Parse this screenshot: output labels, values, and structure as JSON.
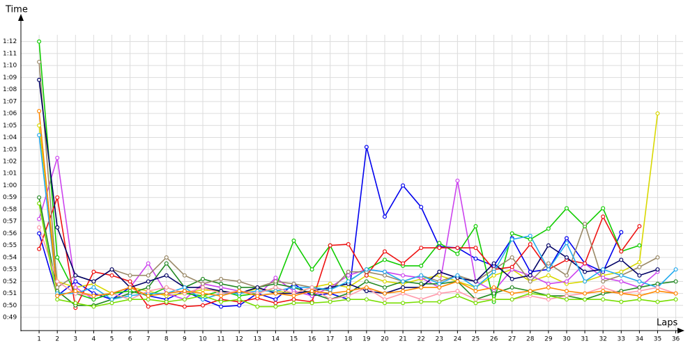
{
  "chart_data": {
    "type": "line",
    "x_label": "Laps",
    "y_label": "Time",
    "x": [
      1,
      2,
      3,
      4,
      5,
      6,
      7,
      8,
      9,
      10,
      11,
      12,
      13,
      14,
      15,
      16,
      17,
      18,
      19,
      20,
      21,
      22,
      23,
      24,
      25,
      26,
      27,
      28,
      29,
      30,
      31,
      32,
      33,
      34,
      35,
      36
    ],
    "xlim": [
      0,
      36.4
    ],
    "xticks": [
      1,
      2,
      3,
      4,
      5,
      6,
      7,
      8,
      9,
      10,
      11,
      12,
      13,
      14,
      15,
      16,
      17,
      18,
      19,
      20,
      21,
      22,
      23,
      24,
      25,
      26,
      27,
      28,
      29,
      30,
      31,
      32,
      33,
      34,
      35,
      36
    ],
    "ylim": [
      47.9,
      74.3
    ],
    "yticks": [
      {
        "value": 49,
        "label": "0:49"
      },
      {
        "value": 50,
        "label": "0:50"
      },
      {
        "value": 51,
        "label": "0:51"
      },
      {
        "value": 52,
        "label": "0:52"
      },
      {
        "value": 53,
        "label": "0:53"
      },
      {
        "value": 54,
        "label": "0:54"
      },
      {
        "value": 55,
        "label": "0:55"
      },
      {
        "value": 56,
        "label": "0:56"
      },
      {
        "value": 57,
        "label": "0:57"
      },
      {
        "value": 58,
        "label": "0:58"
      },
      {
        "value": 59,
        "label": "0:59"
      },
      {
        "value": 60,
        "label": "1:00"
      },
      {
        "value": 61,
        "label": "1:01"
      },
      {
        "value": 62,
        "label": "1:02"
      },
      {
        "value": 63,
        "label": "1:03"
      },
      {
        "value": 64,
        "label": "1:04"
      },
      {
        "value": 65,
        "label": "1:05"
      },
      {
        "value": 66,
        "label": "1:06"
      },
      {
        "value": 67,
        "label": "1:07"
      },
      {
        "value": 68,
        "label": "1:08"
      },
      {
        "value": 69,
        "label": "1:09"
      },
      {
        "value": 70,
        "label": "1:10"
      },
      {
        "value": 71,
        "label": "1:11"
      },
      {
        "value": 72,
        "label": "1:12"
      }
    ],
    "grid": true,
    "series": [
      {
        "color": "#0000ee",
        "values": [
          56.0,
          50.8,
          52.0,
          51.0,
          50.5,
          51.5,
          50.8,
          50.5,
          51.2,
          50.5,
          49.9,
          50.0,
          51.0,
          50.5,
          51.8,
          50.8,
          51.0,
          50.5,
          63.2,
          57.4,
          60.0,
          58.2,
          54.9,
          54.8,
          53.9,
          53.3,
          55.6,
          52.8,
          53.0,
          55.6,
          53.5,
          52.8,
          56.1,
          null,
          null,
          null
        ]
      },
      {
        "color": "#d8d800",
        "values": [
          65.0,
          52.0,
          51.5,
          51.8,
          51.0,
          51.5,
          51.2,
          50.8,
          51.0,
          51.3,
          51.2,
          51.0,
          51.4,
          51.2,
          51.0,
          51.5,
          51.8,
          51.5,
          52.5,
          52.0,
          51.8,
          52.2,
          52.5,
          52.0,
          51.5,
          52.5,
          53.0,
          52.0,
          52.5,
          51.8,
          52.0,
          52.5,
          52.8,
          53.6,
          66.0,
          null
        ]
      },
      {
        "color": "#cc44ee",
        "values": [
          57.2,
          62.3,
          51.5,
          50.5,
          51.0,
          51.5,
          53.5,
          51.0,
          50.5,
          51.8,
          51.5,
          51.2,
          50.8,
          52.3,
          51.2,
          50.8,
          51.5,
          52.5,
          53.0,
          52.8,
          52.5,
          52.3,
          51.5,
          60.4,
          52.0,
          51.2,
          53.0,
          52.5,
          51.8,
          52.0,
          53.5,
          52.3,
          52.0,
          51.5,
          52.8,
          null
        ]
      },
      {
        "color": "#11cc00",
        "values": [
          72.0,
          54.0,
          51.0,
          50.5,
          51.0,
          51.2,
          50.8,
          51.5,
          51.0,
          50.8,
          51.2,
          50.8,
          51.0,
          51.5,
          55.4,
          53.0,
          55.0,
          52.0,
          53.0,
          53.8,
          53.3,
          53.3,
          55.2,
          54.3,
          56.6,
          50.3,
          56.0,
          55.5,
          56.4,
          58.1,
          56.6,
          58.1,
          54.5,
          55.0,
          null,
          null
        ]
      },
      {
        "color": "#ee1111",
        "values": [
          54.7,
          59.0,
          49.8,
          52.8,
          52.5,
          52.0,
          49.9,
          50.2,
          49.9,
          50.0,
          50.5,
          50.3,
          50.6,
          50.2,
          50.5,
          50.3,
          55.0,
          55.1,
          52.5,
          54.5,
          53.5,
          54.8,
          54.8,
          54.8,
          54.8,
          53.0,
          53.2,
          55.1,
          53.0,
          53.8,
          53.5,
          57.4,
          54.5,
          56.6,
          null,
          null
        ]
      },
      {
        "color": "#228822",
        "values": [
          59.0,
          51.2,
          50.0,
          50.0,
          50.5,
          51.0,
          51.5,
          53.5,
          51.5,
          52.2,
          51.8,
          51.5,
          51.5,
          51.8,
          51.5,
          51.0,
          50.5,
          51.0,
          52.0,
          51.5,
          52.0,
          51.8,
          51.8,
          52.0,
          50.5,
          51.0,
          51.5,
          51.2,
          50.8,
          50.8,
          50.5,
          51.0,
          51.2,
          51.5,
          51.8,
          52.0
        ]
      },
      {
        "color": "#998866",
        "values": [
          70.3,
          51.5,
          52.5,
          52.0,
          53.0,
          52.5,
          52.5,
          54.0,
          52.5,
          51.8,
          52.2,
          52.0,
          51.5,
          52.0,
          51.8,
          51.5,
          51.2,
          52.8,
          52.8,
          52.5,
          52.0,
          52.5,
          52.0,
          52.5,
          52.0,
          53.0,
          54.0,
          52.0,
          53.5,
          52.5,
          56.8,
          52.0,
          52.5,
          53.2,
          54.0,
          null
        ]
      },
      {
        "color": "#000066",
        "values": [
          68.8,
          56.5,
          52.5,
          52.0,
          53.0,
          51.5,
          52.0,
          52.5,
          51.5,
          51.5,
          51.2,
          51.0,
          51.5,
          51.0,
          51.0,
          51.2,
          51.5,
          51.8,
          51.2,
          51.0,
          51.5,
          51.5,
          52.8,
          52.3,
          52.0,
          53.5,
          52.2,
          52.5,
          55.0,
          54.0,
          52.8,
          53.0,
          53.8,
          52.5,
          53.0,
          null
        ]
      },
      {
        "color": "#22aaee",
        "values": [
          64.2,
          51.0,
          51.0,
          51.5,
          50.5,
          50.8,
          51.0,
          51.0,
          51.5,
          50.5,
          51.0,
          51.0,
          51.2,
          51.2,
          51.5,
          51.5,
          51.3,
          52.0,
          53.0,
          52.8,
          52.0,
          52.5,
          51.8,
          52.5,
          51.5,
          52.8,
          55.5,
          55.8,
          53.0,
          55.2,
          52.0,
          53.0,
          52.5,
          52.0,
          51.5,
          53.0
        ]
      },
      {
        "color": "#ff99aa",
        "values": [
          56.5,
          52.0,
          51.0,
          50.8,
          51.0,
          50.5,
          51.2,
          51.5,
          51.0,
          51.5,
          51.0,
          51.2,
          51.0,
          51.5,
          51.0,
          51.5,
          50.5,
          50.8,
          51.5,
          50.5,
          51.0,
          50.5,
          51.0,
          51.2,
          50.5,
          50.5,
          50.5,
          50.8,
          50.5,
          50.8,
          51.0,
          51.5,
          51.0,
          51.2,
          51.5,
          51.0
        ]
      },
      {
        "color": "#77dd00",
        "values": [
          58.5,
          50.5,
          50.2,
          49.9,
          50.2,
          50.5,
          50.5,
          50.3,
          50.5,
          50.8,
          50.3,
          50.5,
          49.9,
          49.9,
          50.2,
          50.2,
          50.3,
          50.5,
          50.5,
          50.2,
          50.2,
          50.3,
          50.3,
          50.8,
          50.2,
          50.5,
          50.5,
          51.0,
          50.8,
          50.5,
          50.5,
          50.5,
          50.3,
          50.5,
          50.3,
          50.5
        ]
      },
      {
        "color": "#ff8800",
        "values": [
          66.2,
          50.8,
          51.2,
          50.8,
          51.0,
          51.5,
          50.8,
          51.0,
          51.2,
          51.0,
          50.8,
          51.2,
          50.8,
          51.0,
          50.8,
          51.2,
          51.0,
          51.2,
          51.5,
          51.0,
          51.2,
          51.5,
          51.5,
          52.0,
          51.2,
          51.5,
          51.0,
          51.2,
          51.5,
          51.2,
          51.0,
          51.2,
          51.0,
          50.8,
          51.2,
          51.0
        ]
      }
    ]
  }
}
